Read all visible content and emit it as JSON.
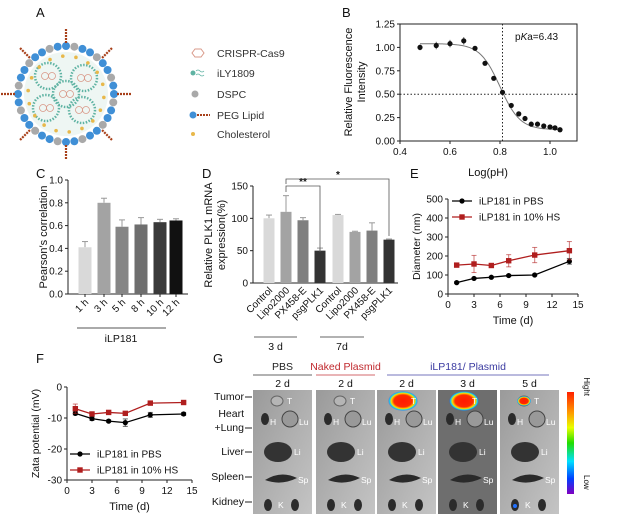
{
  "panels": {
    "A": {
      "label": "A",
      "legend": [
        {
          "name": "CRISPR-Cas9",
          "color": "#d99a8a"
        },
        {
          "name": "iLY1809",
          "color": "#5fb3a3"
        },
        {
          "name": "DSPC",
          "color": "#a9a9a9"
        },
        {
          "name": "PEG Lipid",
          "color": "#3f8fd6"
        },
        {
          "name": "Cholesterol",
          "color": "#e8b84a"
        }
      ],
      "peg_color": "#a8401a"
    },
    "B": {
      "label": "B"
    },
    "C": {
      "label": "C"
    },
    "D": {
      "label": "D"
    },
    "E": {
      "label": "E"
    },
    "F": {
      "label": "F"
    },
    "G": {
      "label": "G"
    }
  },
  "chart_data": [
    {
      "panel": "B",
      "type": "scatter",
      "xlabel": "Log(pH)",
      "ylabel": [
        "Relative Fluorescence",
        "Intensity"
      ],
      "xlim": [
        0.4,
        1.11
      ],
      "ylim": [
        0,
        1.25
      ],
      "xticks": [
        "0.4",
        "0.6",
        "0.8",
        "1.0"
      ],
      "yticks": [
        "0.00",
        "0.25",
        "0.50",
        "0.75",
        "1.00",
        "1.25"
      ],
      "x": [
        0.48,
        0.545,
        0.6,
        0.655,
        0.7,
        0.74,
        0.775,
        0.81,
        0.845,
        0.875,
        0.9,
        0.925,
        0.95,
        0.975,
        1.0,
        1.02,
        1.04
      ],
      "y": [
        1.0,
        1.02,
        1.04,
        1.07,
        0.99,
        0.83,
        0.67,
        0.52,
        0.38,
        0.29,
        0.24,
        0.18,
        0.18,
        0.16,
        0.15,
        0.14,
        0.12
      ],
      "err": [
        0.03,
        0.04,
        0.04,
        0.04,
        0.02,
        0.02,
        0.01,
        0.01,
        0.01,
        0.01,
        0.01,
        0.01,
        0.01,
        0.01,
        0.01,
        0.01,
        0.01
      ],
      "fit_curve": true,
      "reference_lines": {
        "x": 0.81,
        "y": 0.5
      },
      "annotation": {
        "prefix": "p",
        "italic": "K",
        "suffix": "a=6.43"
      }
    },
    {
      "panel": "C",
      "type": "bar",
      "ylabel": "Pearson′s correlation",
      "ylim": [
        0,
        1.0
      ],
      "yticks": [
        "0.0",
        "0.2",
        "0.4",
        "0.6",
        "0.8",
        "1.0"
      ],
      "categories": [
        "1 h",
        "3 h",
        "5 h",
        "8 h",
        "10 h",
        "12 h"
      ],
      "values": [
        0.41,
        0.8,
        0.59,
        0.61,
        0.63,
        0.645
      ],
      "err": [
        0.05,
        0.04,
        0.06,
        0.06,
        0.025,
        0.015
      ],
      "colors": [
        "#d9d9d9",
        "#a3a3a3",
        "#858585",
        "#6e6e6e",
        "#3a3a3a",
        "#111111"
      ],
      "group_label": "iLP181"
    },
    {
      "panel": "D",
      "type": "bar",
      "ylabel": [
        "Relative PLK1 mRNA",
        "expression(%)"
      ],
      "ylim": [
        0,
        150
      ],
      "yticks": [
        "0",
        "50",
        "100",
        "150"
      ],
      "categories": [
        "Control",
        "Lipo2000",
        "PX458-E",
        "psgPLK1"
      ],
      "colors": [
        "#d9d9d9",
        "#a3a3a3",
        "#7f7f7f",
        "#333333"
      ],
      "groups": [
        {
          "label": "3 d",
          "values": [
            100,
            110,
            97,
            50
          ],
          "err": [
            5,
            25,
            4,
            4
          ]
        },
        {
          "label": "7d",
          "values": [
            105,
            79,
            81,
            67
          ],
          "err": [
            1,
            1,
            12,
            1
          ]
        }
      ],
      "significance": [
        {
          "label": "**",
          "from": "3 d Lipo2000",
          "to": "3 d psgPLK1"
        },
        {
          "label": "*",
          "from": "3 d Lipo2000",
          "to": "7d psgPLK1"
        }
      ]
    },
    {
      "panel": "E",
      "type": "line",
      "xlabel": "Time (d)",
      "ylabel": "Diameter (nm)",
      "xlim": [
        0,
        15
      ],
      "ylim": [
        0,
        500
      ],
      "xticks": [
        "0",
        "3",
        "6",
        "9",
        "12",
        "15"
      ],
      "yticks": [
        "0",
        "100",
        "200",
        "300",
        "400",
        "500"
      ],
      "legend": "top-left",
      "series": [
        {
          "name": "iLP181 in PBS",
          "color": "#000000",
          "marker": "circle",
          "x": [
            1,
            3,
            5,
            7,
            10,
            14
          ],
          "y": [
            60,
            82,
            88,
            97,
            100,
            172
          ],
          "err": [
            5,
            5,
            5,
            5,
            5,
            15
          ]
        },
        {
          "name": "iLP181 in 10% HS",
          "color": "#b01e1e",
          "marker": "square",
          "x": [
            1,
            3,
            5,
            7,
            10,
            14
          ],
          "y": [
            152,
            158,
            150,
            175,
            205,
            228
          ],
          "err": [
            5,
            45,
            5,
            32,
            40,
            48
          ]
        }
      ]
    },
    {
      "panel": "F",
      "type": "line",
      "xlabel": "Time (d)",
      "ylabel": "Zata potential (mV)",
      "xlim": [
        0,
        15
      ],
      "ylim": [
        -30,
        0
      ],
      "xticks": [
        "0",
        "3",
        "6",
        "9",
        "12",
        "15"
      ],
      "yticks": [
        "-30",
        "-20",
        "-10",
        "0"
      ],
      "legend": "bottom-left",
      "series": [
        {
          "name": "iLP181 in PBS",
          "color": "#000000",
          "marker": "circle",
          "x": [
            1,
            3,
            5,
            7,
            10,
            14
          ],
          "y": [
            -8.5,
            -10.2,
            -11,
            -11.5,
            -9,
            -8.7
          ],
          "err": [
            0.5,
            0.6,
            0.4,
            1.2,
            0.8,
            0.5
          ]
        },
        {
          "name": "iLP181 in 10% HS",
          "color": "#b01e1e",
          "marker": "square",
          "x": [
            1,
            3,
            5,
            7,
            10,
            14
          ],
          "y": [
            -7,
            -8.7,
            -8.2,
            -8.5,
            -5.2,
            -5
          ],
          "err": [
            1.5,
            0.4,
            0.4,
            0.4,
            0.4,
            0.3
          ]
        }
      ]
    }
  ],
  "panel_g": {
    "groups": [
      {
        "label": "PBS",
        "color": "#222222"
      },
      {
        "label": "Naked Plasmid",
        "color": "#c0282d"
      },
      {
        "label": "iLP181/ Plasmid",
        "color": "#3a3aa0"
      }
    ],
    "images": [
      {
        "day": "2 d",
        "signal": "none"
      },
      {
        "day": "2 d",
        "signal": "none"
      },
      {
        "day": "2 d",
        "signal": "tumor-high"
      },
      {
        "day": "3 d",
        "signal": "tumor-high"
      },
      {
        "day": "5 d",
        "signal": "tumor-low"
      }
    ],
    "organs": [
      "Tumor",
      "Heart",
      "+Lung",
      "Liver",
      "Spleen",
      "Kidney"
    ],
    "organ_tags": {
      "tumor": "T",
      "heart": "H",
      "lung": "Lu",
      "liver": "Li",
      "spleen": "Sp",
      "kidney": "K"
    },
    "colorbar": {
      "high": "Hight",
      "low": "Low"
    }
  }
}
